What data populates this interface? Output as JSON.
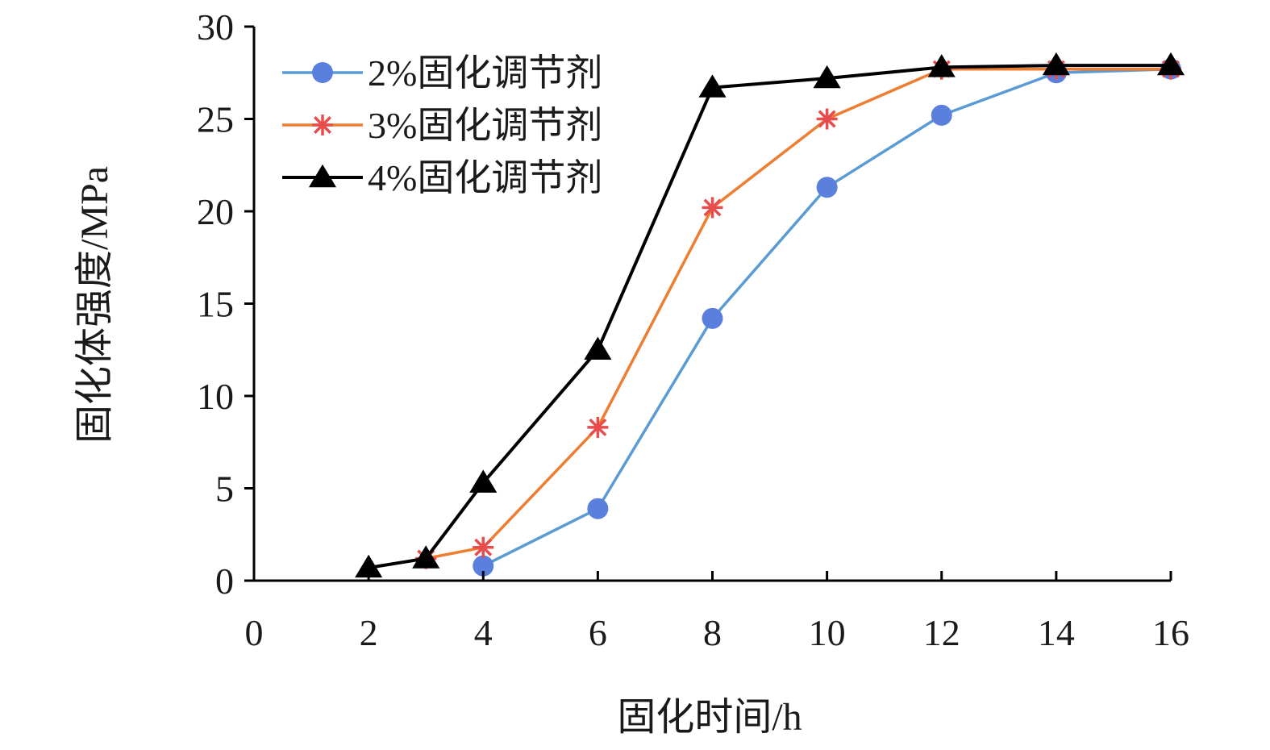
{
  "chart_data": {
    "type": "line",
    "title": "",
    "xlabel": "固化时间/h",
    "ylabel": "固化体强度/MPa",
    "xlim": [
      0,
      16
    ],
    "ylim": [
      0,
      30
    ],
    "x_ticks": [
      0,
      2,
      4,
      6,
      8,
      10,
      12,
      14,
      16
    ],
    "y_ticks": [
      0,
      5,
      10,
      15,
      20,
      25,
      30
    ],
    "grid": false,
    "legend_position": "top-left",
    "series": [
      {
        "name": "2%固化调节剂",
        "marker": "circle",
        "color": "#5b9bd5",
        "marker_color": "#5b7fdc",
        "points": [
          [
            4,
            0.8
          ],
          [
            6,
            3.9
          ],
          [
            8,
            14.2
          ],
          [
            10,
            21.3
          ],
          [
            12,
            25.2
          ],
          [
            14,
            27.5
          ],
          [
            16,
            27.7
          ]
        ]
      },
      {
        "name": "3%固化调节剂",
        "marker": "star",
        "color": "#ed7d31",
        "marker_color": "#e84c4c",
        "points": [
          [
            3,
            1.2
          ],
          [
            4,
            1.8
          ],
          [
            6,
            8.3
          ],
          [
            8,
            20.2
          ],
          [
            10,
            25.0
          ],
          [
            12,
            27.7
          ],
          [
            14,
            27.7
          ],
          [
            16,
            27.7
          ]
        ]
      },
      {
        "name": "4%固化调节剂",
        "marker": "triangle",
        "color": "#000000",
        "marker_color": "#000000",
        "points": [
          [
            2,
            0.7
          ],
          [
            3,
            1.2
          ],
          [
            4,
            5.3
          ],
          [
            6,
            12.5
          ],
          [
            8,
            26.7
          ],
          [
            10,
            27.2
          ],
          [
            12,
            27.8
          ],
          [
            14,
            27.9
          ],
          [
            16,
            27.9
          ]
        ]
      }
    ]
  }
}
